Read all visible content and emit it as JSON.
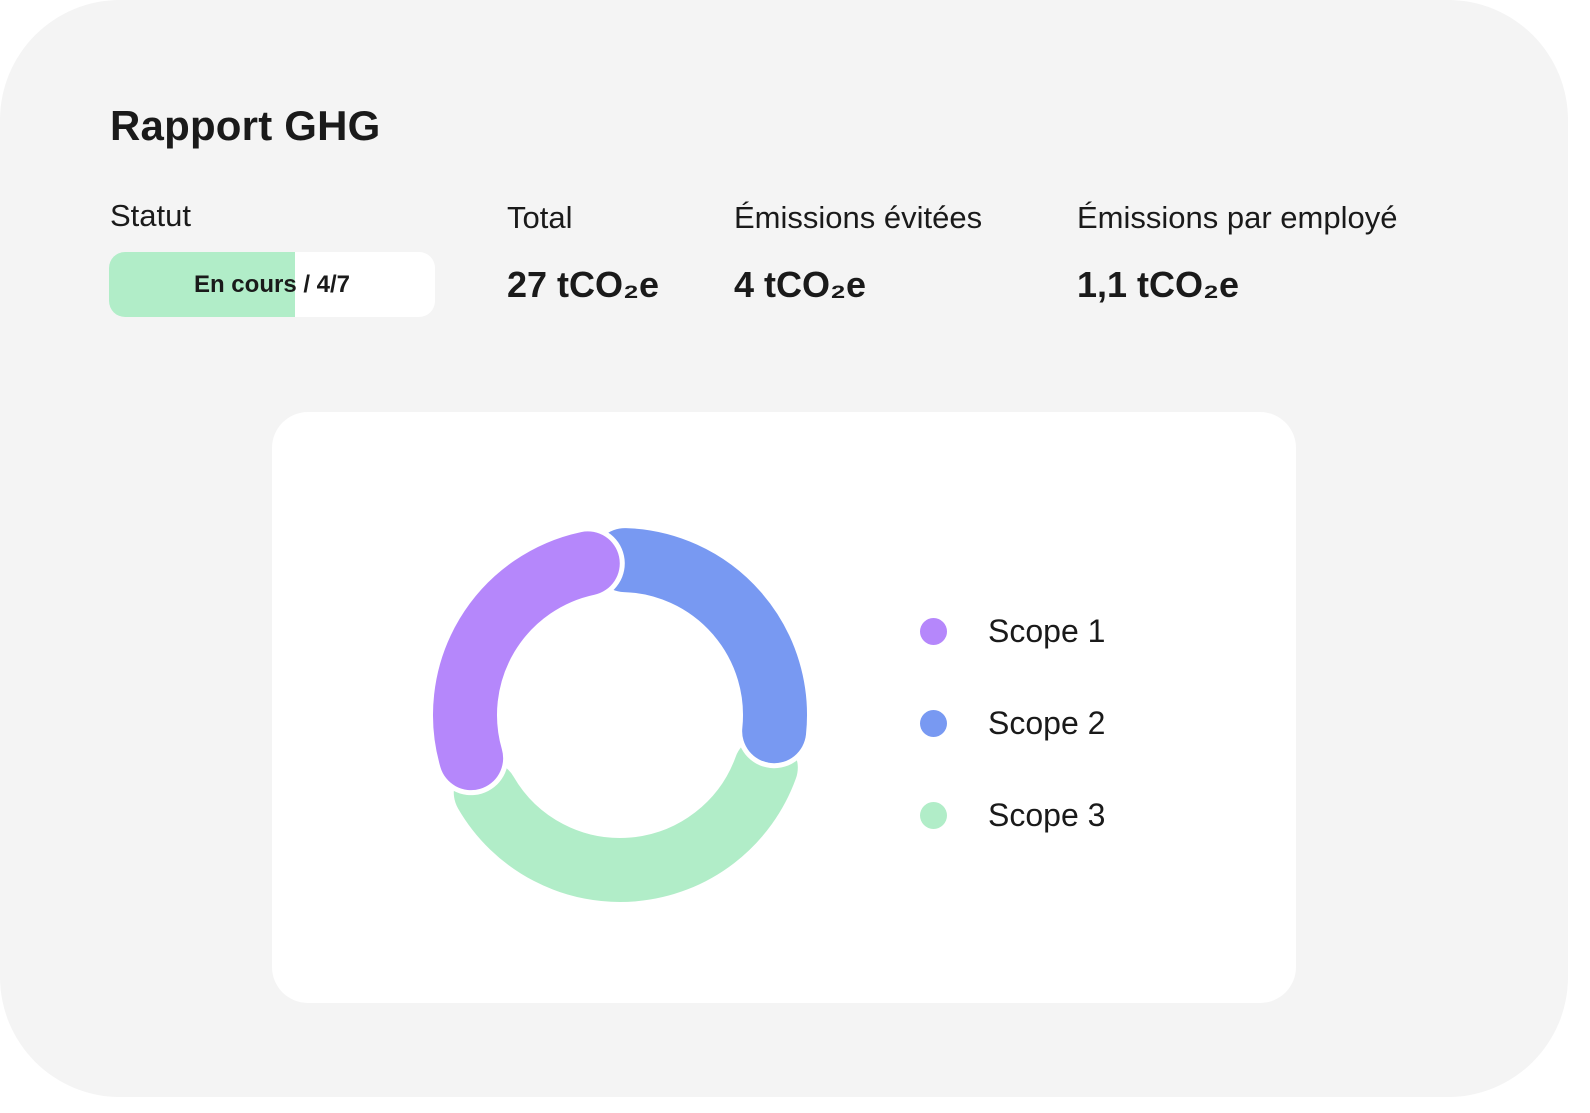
{
  "report": {
    "title": "Rapport GHG"
  },
  "stats": {
    "status": {
      "label": "Statut",
      "value": "En cours / 4/7",
      "completed": 4,
      "total": 7
    },
    "total": {
      "label": "Total",
      "value": "27 tCO₂e"
    },
    "avoided": {
      "label": "Émissions évitées",
      "value": "4 tCO₂e"
    },
    "per_employee": {
      "label": "Émissions par employé",
      "value": "1,1 tCO₂e"
    }
  },
  "colors": {
    "scope1": "#b587fb",
    "scope2": "#7899f2",
    "scope3": "#b1edc8",
    "status_fill": "#b1edc8"
  },
  "chart_data": {
    "type": "pie",
    "variant": "donut",
    "series": [
      {
        "name": "Scope 1",
        "value": 30,
        "color": "#b587fb"
      },
      {
        "name": "Scope 2",
        "value": 30,
        "color": "#7899f2"
      },
      {
        "name": "Scope 3",
        "value": 40,
        "color": "#b1edc8"
      }
    ],
    "legend_position": "right"
  },
  "legend": [
    {
      "label": "Scope 1",
      "color": "#b587fb"
    },
    {
      "label": "Scope 2",
      "color": "#7899f2"
    },
    {
      "label": "Scope 3",
      "color": "#b1edc8"
    }
  ]
}
